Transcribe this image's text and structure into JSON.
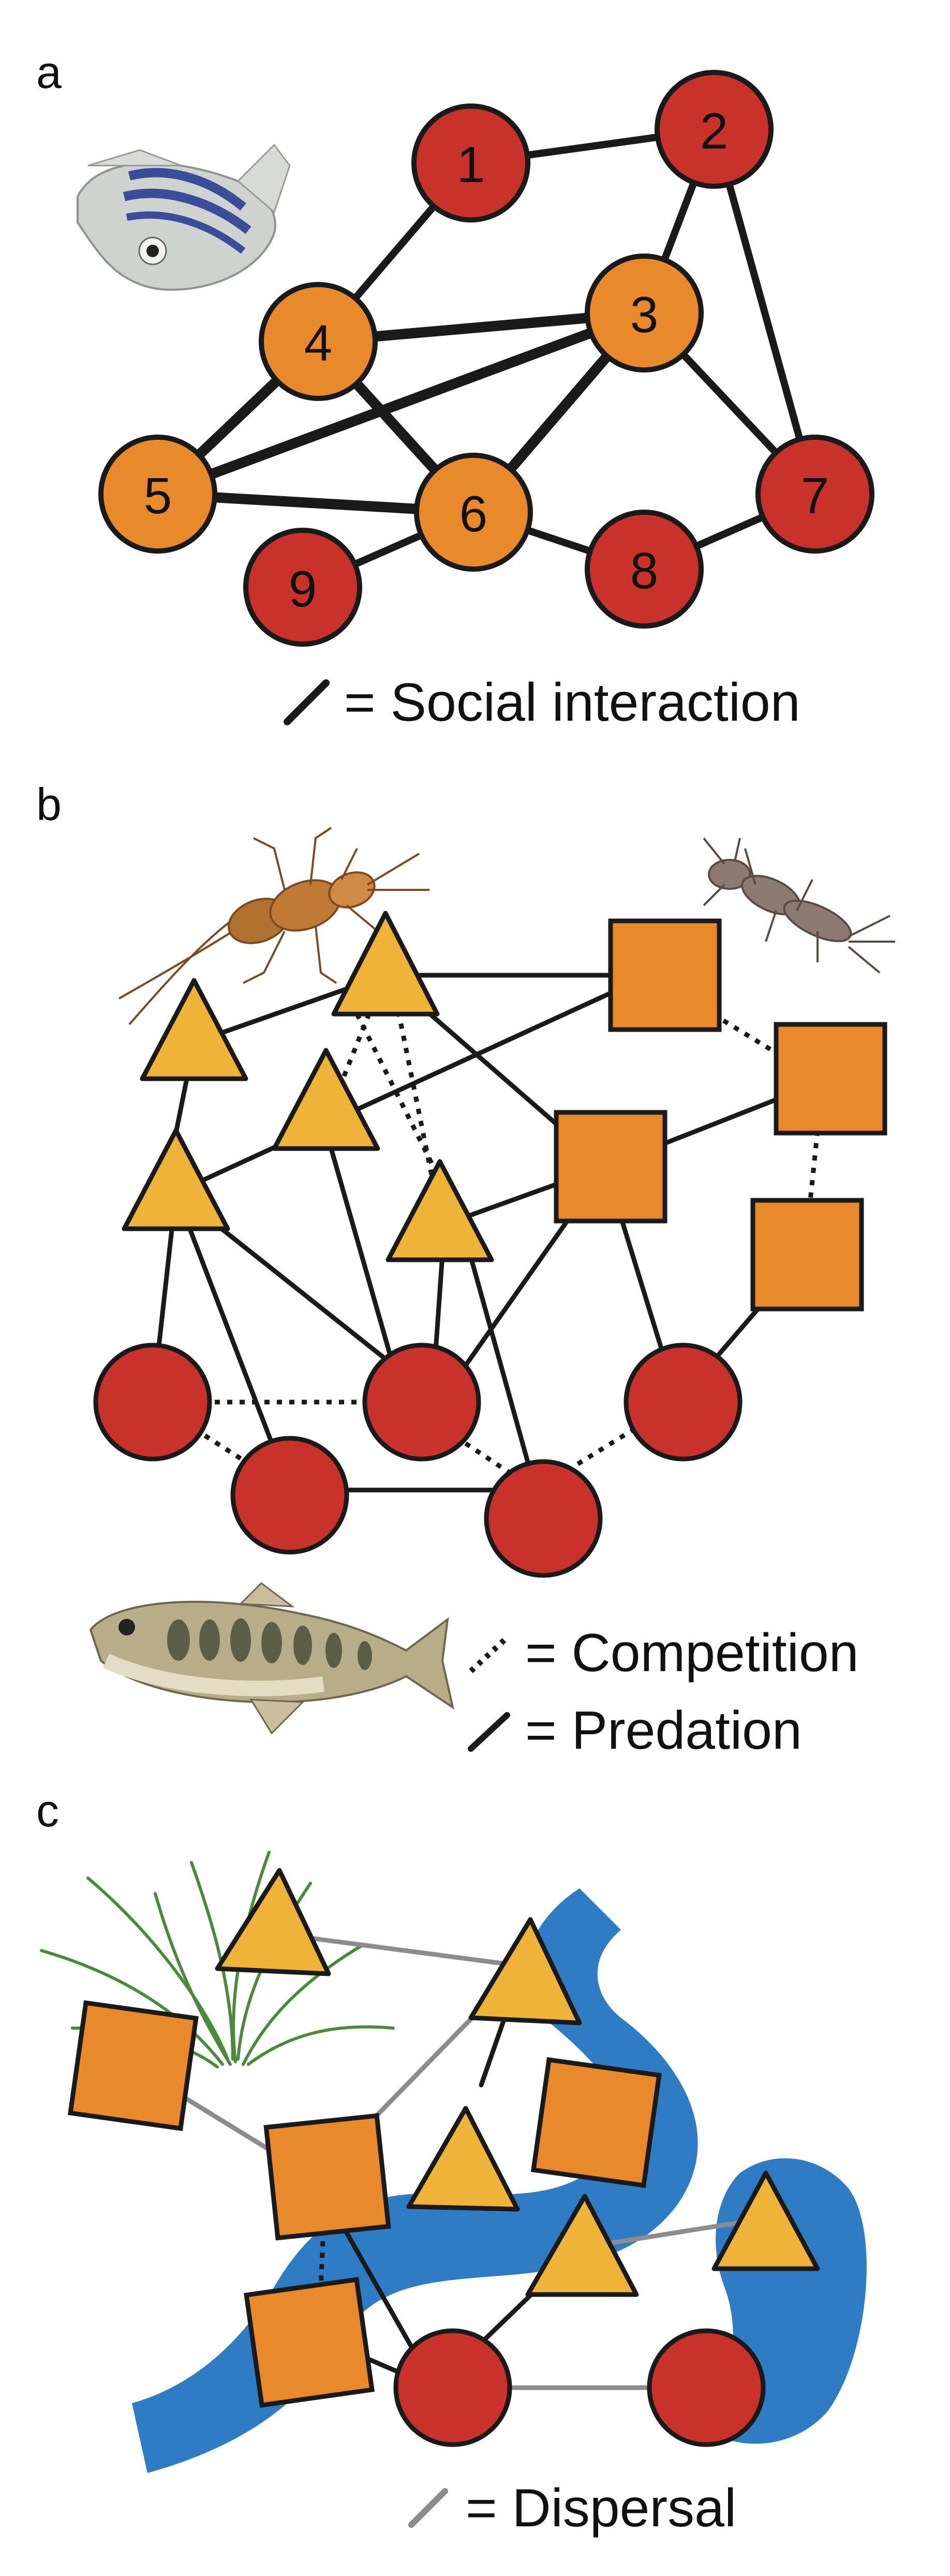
{
  "colors": {
    "red": "#c8322b",
    "orange": "#e8892c",
    "yellow": "#f0b33a",
    "outline": "#1a1a1a",
    "river": "#2f7bc4",
    "gray_edge": "#8c8c8c"
  },
  "panels": {
    "a": {
      "letter": "a",
      "icon": "zebrafish-icon",
      "nodes": [
        {
          "id": "1",
          "label": "1",
          "group": "red"
        },
        {
          "id": "2",
          "label": "2",
          "group": "red"
        },
        {
          "id": "3",
          "label": "3",
          "group": "orange"
        },
        {
          "id": "4",
          "label": "4",
          "group": "orange"
        },
        {
          "id": "5",
          "label": "5",
          "group": "orange"
        },
        {
          "id": "6",
          "label": "6",
          "group": "orange"
        },
        {
          "id": "7",
          "label": "7",
          "group": "red"
        },
        {
          "id": "8",
          "label": "8",
          "group": "red"
        },
        {
          "id": "9",
          "label": "9",
          "group": "red"
        }
      ],
      "edges": [
        [
          "1",
          "2"
        ],
        [
          "1",
          "4"
        ],
        [
          "2",
          "3"
        ],
        [
          "2",
          "7"
        ],
        [
          "3",
          "4"
        ],
        [
          "3",
          "5"
        ],
        [
          "3",
          "6"
        ],
        [
          "3",
          "7"
        ],
        [
          "4",
          "5"
        ],
        [
          "4",
          "6"
        ],
        [
          "5",
          "6"
        ],
        [
          "6",
          "9"
        ],
        [
          "6",
          "8"
        ],
        [
          "8",
          "7"
        ]
      ],
      "legend": {
        "symbol": "= Social interaction"
      }
    },
    "b": {
      "letter": "b",
      "icons": [
        "stonefly-icon",
        "mayfly-larva-icon",
        "trout-icon"
      ],
      "legend": {
        "competition": "= Competition",
        "predation": "= Predation"
      }
    },
    "c": {
      "letter": "c",
      "icons": [
        "grass-icon",
        "river-icon"
      ],
      "legend": {
        "dispersal": "= Dispersal"
      }
    }
  }
}
